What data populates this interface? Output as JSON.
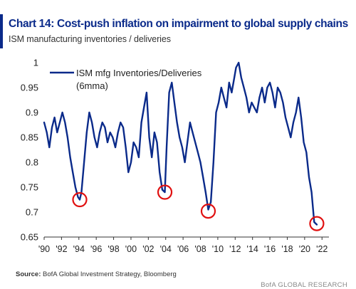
{
  "header": {
    "title": "Chart 14: Cost-push inflation on impairment to global supply chains",
    "subtitle": "ISM manufacturing inventories / deliveries"
  },
  "footer": {
    "source_label": "Source:",
    "source_text": "BofA Global Investment Strategy, Bloomberg",
    "credit": "BofA GLOBAL RESEARCH"
  },
  "colors": {
    "series": "#0a2a8a",
    "highlight": "#e01010",
    "title": "#0a2a8a"
  },
  "chart_data": {
    "type": "line",
    "title": "Chart 14: Cost-push inflation on impairment to global supply chains",
    "subtitle": "ISM manufacturing inventories / deliveries",
    "xlabel": "",
    "ylabel": "",
    "ylim": [
      0.65,
      1.0
    ],
    "xlim": [
      1990,
      2022.8
    ],
    "yticks": [
      0.65,
      0.7,
      0.75,
      0.8,
      0.85,
      0.9,
      0.95,
      1.0
    ],
    "ytick_labels": [
      "0.65",
      "0.7",
      "0.75",
      "0.8",
      "0.85",
      "0.9",
      "0.95",
      "1"
    ],
    "xticks": [
      1990,
      1992,
      1994,
      1996,
      1998,
      2000,
      2002,
      2004,
      2006,
      2008,
      2010,
      2012,
      2014,
      2016,
      2018,
      2020,
      2022
    ],
    "xtick_labels": [
      "'90",
      "'92",
      "'94",
      "'96",
      "'98",
      "'00",
      "'02",
      "'04",
      "'06",
      "'08",
      "'10",
      "'12",
      "'14",
      "'16",
      "'18",
      "'20",
      "'22"
    ],
    "grid": false,
    "legend": {
      "position": "top-left",
      "entries": [
        "ISM mfg Inventories/Deliveries (6mma)"
      ]
    },
    "series": [
      {
        "name": "ISM mfg Inventories/Deliveries (6mma)",
        "x": [
          1990.0,
          1990.3,
          1990.6,
          1990.9,
          1991.2,
          1991.5,
          1991.8,
          1992.1,
          1992.4,
          1992.7,
          1993.0,
          1993.3,
          1993.6,
          1993.9,
          1994.1,
          1994.3,
          1994.6,
          1994.9,
          1995.2,
          1995.5,
          1995.8,
          1996.1,
          1996.4,
          1996.7,
          1997.0,
          1997.3,
          1997.6,
          1997.9,
          1998.2,
          1998.5,
          1998.8,
          1999.1,
          1999.4,
          1999.7,
          2000.0,
          2000.3,
          2000.6,
          2000.9,
          2001.2,
          2001.5,
          2001.8,
          2002.1,
          2002.4,
          2002.7,
          2003.0,
          2003.3,
          2003.6,
          2003.9,
          2004.1,
          2004.4,
          2004.7,
          2005.0,
          2005.3,
          2005.6,
          2005.9,
          2006.2,
          2006.5,
          2006.8,
          2007.1,
          2007.4,
          2007.7,
          2008.0,
          2008.3,
          2008.6,
          2008.9,
          2009.2,
          2009.5,
          2009.8,
          2010.1,
          2010.4,
          2010.7,
          2011.0,
          2011.3,
          2011.6,
          2011.9,
          2012.1,
          2012.4,
          2012.7,
          2013.0,
          2013.3,
          2013.6,
          2013.9,
          2014.2,
          2014.5,
          2014.8,
          2015.1,
          2015.4,
          2015.7,
          2016.0,
          2016.3,
          2016.6,
          2016.9,
          2017.2,
          2017.5,
          2017.8,
          2018.1,
          2018.4,
          2018.7,
          2019.0,
          2019.3,
          2019.6,
          2019.9,
          2020.2,
          2020.5,
          2020.8,
          2021.1,
          2021.4
        ],
        "y": [
          0.88,
          0.86,
          0.83,
          0.87,
          0.89,
          0.86,
          0.88,
          0.9,
          0.88,
          0.85,
          0.81,
          0.78,
          0.75,
          0.73,
          0.725,
          0.74,
          0.8,
          0.86,
          0.9,
          0.88,
          0.85,
          0.83,
          0.86,
          0.88,
          0.87,
          0.84,
          0.86,
          0.85,
          0.83,
          0.86,
          0.88,
          0.87,
          0.83,
          0.78,
          0.8,
          0.84,
          0.83,
          0.81,
          0.88,
          0.91,
          0.94,
          0.85,
          0.81,
          0.86,
          0.84,
          0.78,
          0.745,
          0.74,
          0.83,
          0.94,
          0.96,
          0.92,
          0.88,
          0.85,
          0.83,
          0.8,
          0.84,
          0.88,
          0.86,
          0.84,
          0.82,
          0.8,
          0.77,
          0.74,
          0.705,
          0.72,
          0.8,
          0.9,
          0.92,
          0.95,
          0.93,
          0.91,
          0.96,
          0.94,
          0.97,
          0.99,
          1.0,
          0.97,
          0.95,
          0.93,
          0.9,
          0.92,
          0.91,
          0.9,
          0.93,
          0.95,
          0.92,
          0.95,
          0.96,
          0.94,
          0.91,
          0.95,
          0.94,
          0.92,
          0.89,
          0.87,
          0.85,
          0.88,
          0.9,
          0.93,
          0.89,
          0.84,
          0.82,
          0.77,
          0.74,
          0.68,
          0.675
        ]
      }
    ],
    "highlights": [
      {
        "x": 1994.1,
        "y": 0.725
      },
      {
        "x": 2003.9,
        "y": 0.74
      },
      {
        "x": 2008.9,
        "y": 0.702
      },
      {
        "x": 2021.4,
        "y": 0.677
      }
    ]
  }
}
